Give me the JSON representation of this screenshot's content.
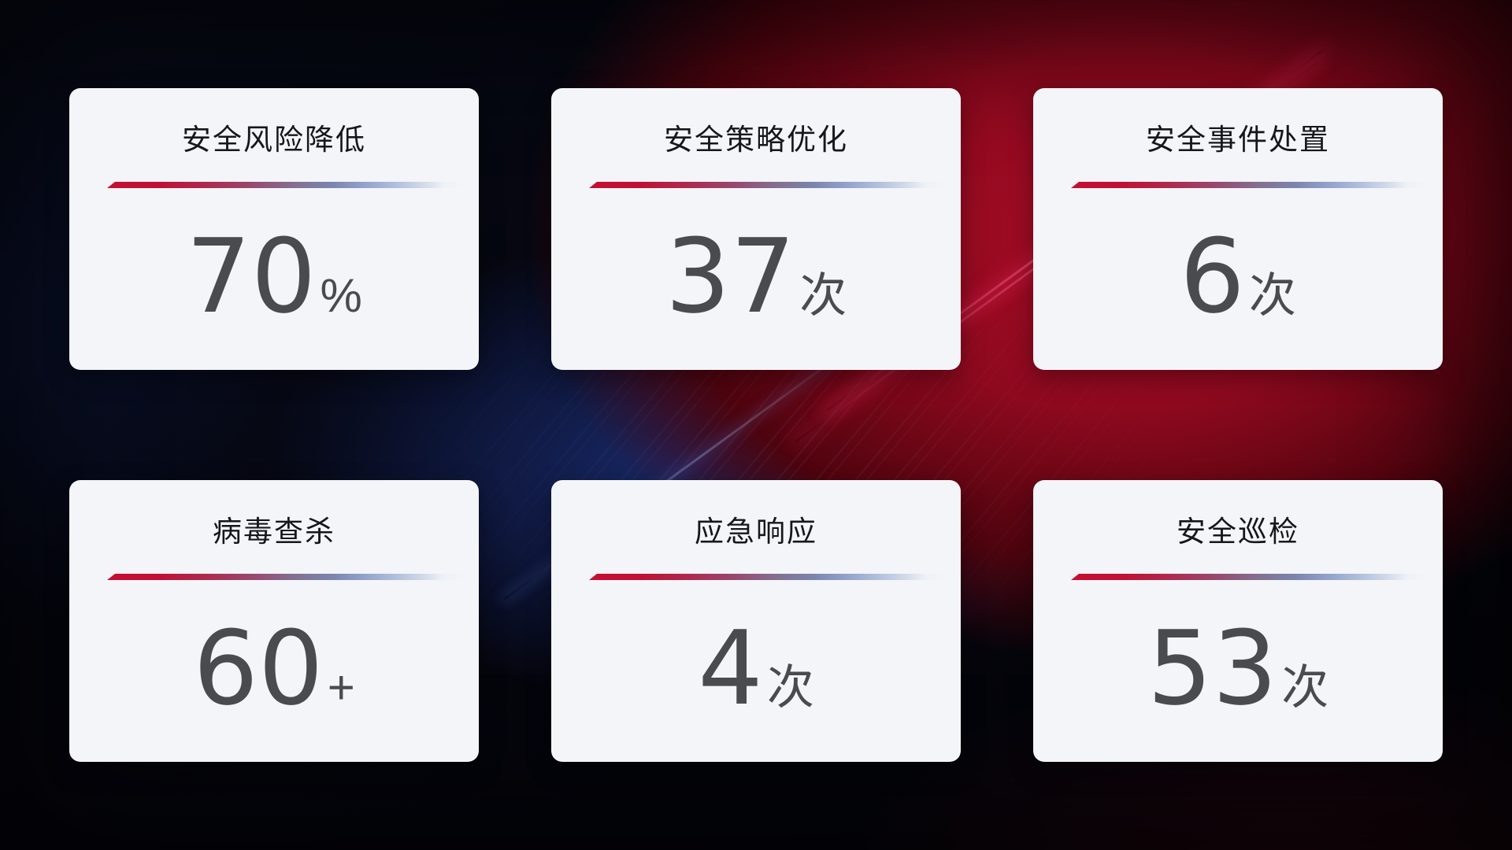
{
  "cards": [
    {
      "title": "安全风险降低",
      "value": "70",
      "suffix": "%"
    },
    {
      "title": "安全策略优化",
      "value": "37",
      "suffix": "次"
    },
    {
      "title": "安全事件处置",
      "value": "6",
      "suffix": "次"
    },
    {
      "title": "病毒查杀",
      "value": "60",
      "suffix": "+"
    },
    {
      "title": "应急响应",
      "value": "4",
      "suffix": "次"
    },
    {
      "title": "安全巡检",
      "value": "53",
      "suffix": "次"
    }
  ],
  "colors": {
    "card_background": "#f4f5f8",
    "title_text": "#16171b",
    "value_text": "#4a4b4f",
    "divider_red": "#c50f33",
    "divider_slate_blue": "#94a5cd",
    "background_red_glow": "#a60d26",
    "background_navy_glow": "#1b2d74"
  }
}
